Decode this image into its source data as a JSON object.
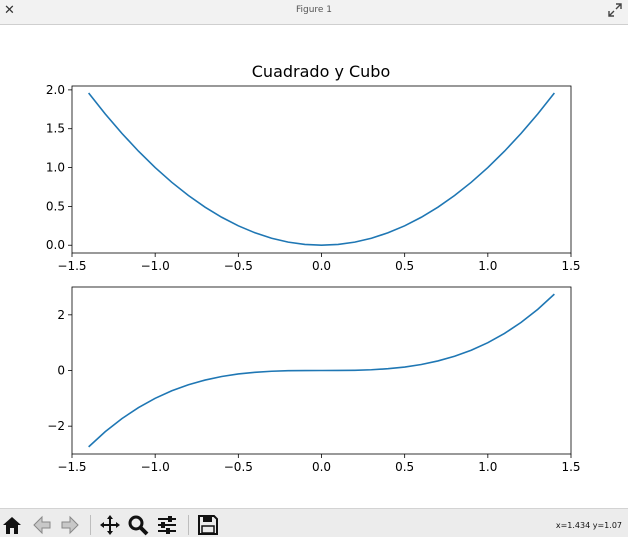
{
  "window": {
    "title": "Figure 1"
  },
  "toolbar": {
    "icons": [
      "home-icon",
      "back-icon",
      "forward-icon",
      "pan-icon",
      "zoom-icon",
      "configure-subplots-icon",
      "save-icon"
    ],
    "coords_text": "x=1.434 y=1.07"
  },
  "figure": {
    "title": "Cuadrado y Cubo"
  },
  "colors": {
    "line": "#1f77b4"
  },
  "chart_data": [
    {
      "type": "line",
      "title": "Cuadrado y Cubo",
      "xlabel": "",
      "ylabel": "",
      "function": "x^2",
      "xlim": [
        -1.5,
        1.5
      ],
      "ylim": [
        -0.1,
        2.05
      ],
      "x_ticks": [
        "-1.5",
        "-1.0",
        "-0.5",
        "0.0",
        "0.5",
        "1.0",
        "1.5"
      ],
      "y_ticks": [
        "0.0",
        "0.5",
        "1.0",
        "1.5",
        "2.0"
      ],
      "series": [
        {
          "x": [
            -1.4,
            -1.3,
            -1.2,
            -1.1,
            -1.0,
            -0.9,
            -0.8,
            -0.7,
            -0.6,
            -0.5,
            -0.4,
            -0.3,
            -0.2,
            -0.1,
            0.0,
            0.1,
            0.2,
            0.3,
            0.4,
            0.5,
            0.6,
            0.7,
            0.8,
            0.9,
            1.0,
            1.1,
            1.2,
            1.3,
            1.4
          ],
          "y": [
            1.96,
            1.69,
            1.44,
            1.21,
            1.0,
            0.81,
            0.64,
            0.49,
            0.36,
            0.25,
            0.16,
            0.09,
            0.04,
            0.01,
            0.0,
            0.01,
            0.04,
            0.09,
            0.16,
            0.25,
            0.36,
            0.49,
            0.64,
            0.81,
            1.0,
            1.21,
            1.44,
            1.69,
            1.96
          ]
        }
      ],
      "grid": false
    },
    {
      "type": "line",
      "title": "",
      "xlabel": "",
      "ylabel": "",
      "function": "x^3",
      "xlim": [
        -1.5,
        1.5
      ],
      "ylim": [
        -3.0,
        3.0
      ],
      "x_ticks": [
        "-1.5",
        "-1.0",
        "-0.5",
        "0.0",
        "0.5",
        "1.0",
        "1.5"
      ],
      "y_ticks": [
        "-2",
        "0",
        "2"
      ],
      "series": [
        {
          "x": [
            -1.4,
            -1.3,
            -1.2,
            -1.1,
            -1.0,
            -0.9,
            -0.8,
            -0.7,
            -0.6,
            -0.5,
            -0.4,
            -0.3,
            -0.2,
            -0.1,
            0.0,
            0.1,
            0.2,
            0.3,
            0.4,
            0.5,
            0.6,
            0.7,
            0.8,
            0.9,
            1.0,
            1.1,
            1.2,
            1.3,
            1.4
          ],
          "y": [
            -2.744,
            -2.197,
            -1.728,
            -1.331,
            -1.0,
            -0.729,
            -0.512,
            -0.343,
            -0.216,
            -0.125,
            -0.064,
            -0.027,
            -0.008,
            -0.001,
            0.0,
            0.001,
            0.008,
            0.027,
            0.064,
            0.125,
            0.216,
            0.343,
            0.512,
            0.729,
            1.0,
            1.331,
            1.728,
            2.197,
            2.744
          ]
        }
      ],
      "grid": false
    }
  ]
}
